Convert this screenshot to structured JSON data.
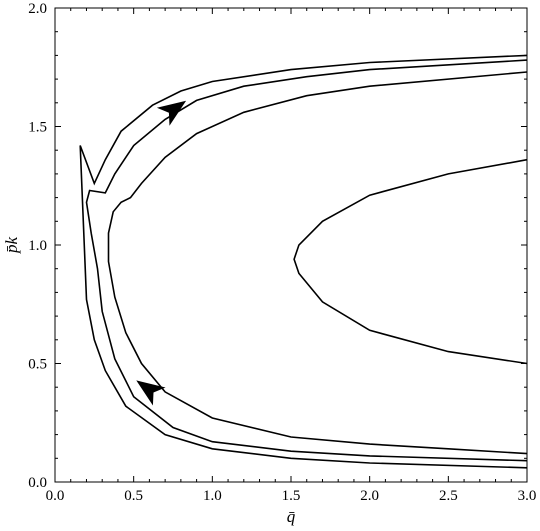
{
  "chart_data": {
    "type": "line",
    "title": "",
    "xlabel": "q̄",
    "ylabel": "p̄k",
    "xlim": [
      0.0,
      3.0
    ],
    "ylim": [
      0.0,
      2.0
    ],
    "x_ticks": [
      "0.0",
      "0.5",
      "1.0",
      "1.5",
      "2.0",
      "2.5",
      "3.0"
    ],
    "y_ticks": [
      "0.0",
      "0.5",
      "1.0",
      "1.5",
      "2.0"
    ],
    "grid": false,
    "series": [
      {
        "points": [
          [
            3.0,
            0.06
          ],
          [
            2.0,
            0.08
          ],
          [
            1.5,
            0.1
          ],
          [
            1.0,
            0.14
          ],
          [
            0.7,
            0.2
          ],
          [
            0.45,
            0.32
          ],
          [
            0.32,
            0.47
          ],
          [
            0.25,
            0.6
          ],
          [
            0.2,
            0.77
          ],
          [
            0.16,
            1.42
          ],
          [
            0.25,
            1.26
          ],
          [
            0.32,
            1.36
          ],
          [
            0.42,
            1.48
          ],
          [
            0.62,
            1.59
          ],
          [
            0.8,
            1.65
          ],
          [
            1.0,
            1.69
          ],
          [
            1.5,
            1.74
          ],
          [
            2.0,
            1.77
          ],
          [
            3.0,
            1.8
          ]
        ]
      },
      {
        "points": [
          [
            3.0,
            0.09
          ],
          [
            2.0,
            0.11
          ],
          [
            1.5,
            0.13
          ],
          [
            1.0,
            0.17
          ],
          [
            0.75,
            0.23
          ],
          [
            0.5,
            0.36
          ],
          [
            0.38,
            0.52
          ],
          [
            0.3,
            0.72
          ],
          [
            0.27,
            0.9
          ],
          [
            0.23,
            1.05
          ],
          [
            0.2,
            1.18
          ],
          [
            0.22,
            1.23
          ],
          [
            0.32,
            1.22
          ],
          [
            0.38,
            1.3
          ],
          [
            0.5,
            1.42
          ],
          [
            0.7,
            1.53
          ],
          [
            0.9,
            1.61
          ],
          [
            1.2,
            1.67
          ],
          [
            1.6,
            1.71
          ],
          [
            2.0,
            1.74
          ],
          [
            3.0,
            1.78
          ]
        ]
      },
      {
        "points": [
          [
            3.0,
            0.12
          ],
          [
            2.5,
            0.14
          ],
          [
            2.0,
            0.16
          ],
          [
            1.5,
            0.19
          ],
          [
            1.0,
            0.27
          ],
          [
            0.7,
            0.38
          ],
          [
            0.55,
            0.5
          ],
          [
            0.45,
            0.63
          ],
          [
            0.38,
            0.78
          ],
          [
            0.34,
            0.93
          ],
          [
            0.34,
            1.05
          ],
          [
            0.37,
            1.14
          ],
          [
            0.42,
            1.18
          ],
          [
            0.48,
            1.2
          ],
          [
            0.55,
            1.26
          ],
          [
            0.7,
            1.37
          ],
          [
            0.9,
            1.47
          ],
          [
            1.2,
            1.56
          ],
          [
            1.6,
            1.63
          ],
          [
            2.0,
            1.67
          ],
          [
            3.0,
            1.73
          ]
        ]
      },
      {
        "points": [
          [
            3.0,
            0.5
          ],
          [
            2.5,
            0.55
          ],
          [
            2.0,
            0.64
          ],
          [
            1.7,
            0.76
          ],
          [
            1.55,
            0.88
          ],
          [
            1.52,
            0.94
          ],
          [
            1.55,
            1.0
          ],
          [
            1.7,
            1.1
          ],
          [
            2.0,
            1.21
          ],
          [
            2.5,
            1.3
          ],
          [
            3.0,
            1.36
          ]
        ]
      }
    ],
    "arrows": [
      {
        "x": 0.75,
        "y": 1.57,
        "direction": "up-right"
      },
      {
        "x": 0.6,
        "y": 0.39,
        "direction": "up-left"
      }
    ]
  }
}
